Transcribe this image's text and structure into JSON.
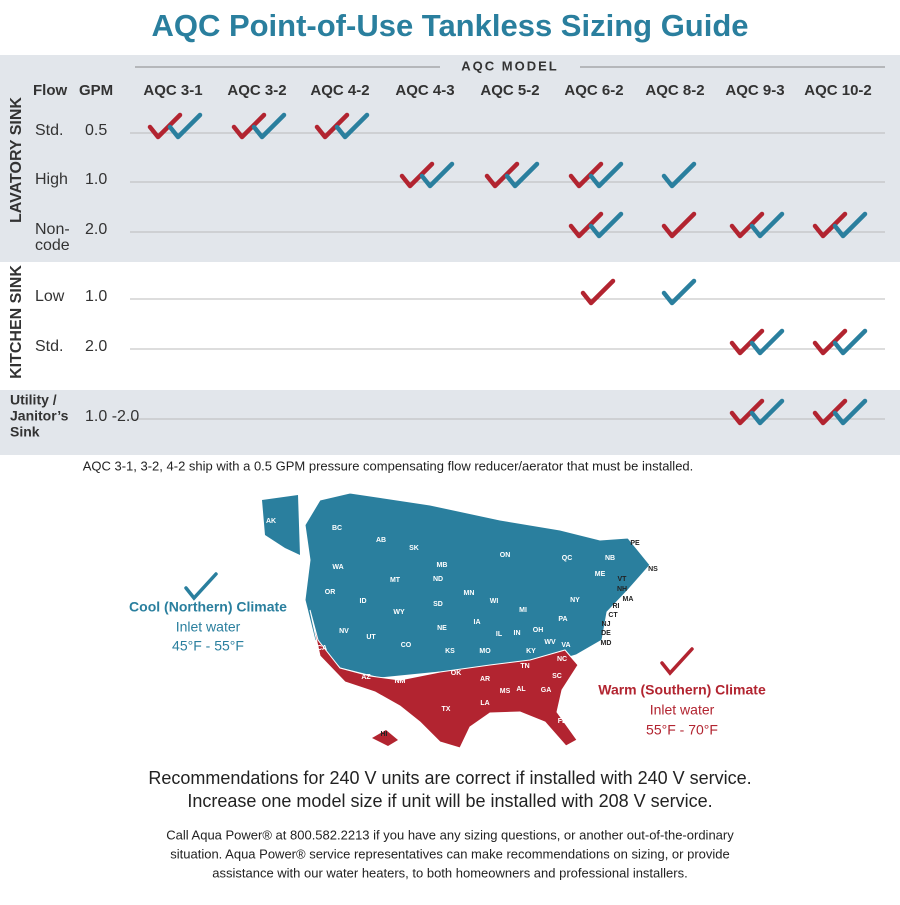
{
  "title": "AQC Point-of-Use Tankless Sizing Guide",
  "table": {
    "model_header": "AQC MODEL",
    "flow_header": "Flow",
    "gpm_header": "GPM",
    "models": [
      "AQC 3-1",
      "AQC 3-2",
      "AQC 4-2",
      "AQC 4-3",
      "AQC 5-2",
      "AQC 6-2",
      "AQC 8-2",
      "AQC 9-3",
      "AQC 10-2"
    ],
    "groups": [
      {
        "label": "LAVATORY SINK",
        "rows": [
          {
            "label": [
              "Std."
            ],
            "gpm": "0.5",
            "checks": [
              "both",
              "both",
              "both",
              null,
              null,
              null,
              null,
              null,
              null
            ]
          },
          {
            "label": [
              "High"
            ],
            "gpm": "1.0",
            "checks": [
              null,
              null,
              null,
              "both",
              "both",
              "both",
              "cool",
              null,
              null
            ]
          },
          {
            "label": [
              "Non-",
              "code"
            ],
            "gpm": "2.0",
            "checks": [
              null,
              null,
              null,
              null,
              null,
              "both",
              "warm",
              "both",
              "both"
            ]
          }
        ]
      },
      {
        "label": "KITCHEN SINK",
        "rows": [
          {
            "label": [
              "Low"
            ],
            "gpm": "1.0",
            "checks": [
              null,
              null,
              null,
              null,
              null,
              "warm",
              "cool",
              null,
              null
            ]
          },
          {
            "label": [
              "Std."
            ],
            "gpm": "2.0",
            "checks": [
              null,
              null,
              null,
              null,
              null,
              null,
              null,
              "both",
              "both"
            ]
          }
        ]
      },
      {
        "rows": [
          {
            "label": [
              "Utility /",
              "Janitor’s",
              "Sink"
            ],
            "gpm": "1.0 -2.0",
            "checks": [
              null,
              null,
              null,
              null,
              null,
              null,
              null,
              "both",
              "both"
            ]
          }
        ]
      }
    ],
    "footnote": "AQC 3-1, 3-2, 4-2 ship with a 0.5 GPM pressure compensating flow reducer/aerator that must be installed."
  },
  "map": {
    "labels": [
      "AK",
      "BC",
      "AB",
      "SK",
      "MB",
      "ON",
      "QC",
      "NB",
      "PE",
      "NS",
      "ME",
      "VT",
      "NH",
      "MA",
      "RI",
      "CT",
      "NJ",
      "DE",
      "MD",
      "WA",
      "OR",
      "CA",
      "NV",
      "ID",
      "MT",
      "WY",
      "UT",
      "CO",
      "AZ",
      "NM",
      "ND",
      "SD",
      "NE",
      "KS",
      "OK",
      "TX",
      "MN",
      "IA",
      "MO",
      "AR",
      "LA",
      "WI",
      "IL",
      "MI",
      "IN",
      "OH",
      "KY",
      "TN",
      "MS",
      "AL",
      "GA",
      "FL",
      "SC",
      "NC",
      "VA",
      "WV",
      "PA",
      "NY",
      "HI"
    ],
    "cool": {
      "title": "Cool (Northern) Climate",
      "line1": "Inlet water",
      "line2": "45°F - 55°F"
    },
    "warm": {
      "title": "Warm (Southern) Climate",
      "line1": "Inlet water",
      "line2": "55°F - 70°F"
    }
  },
  "notes": {
    "recommendation": [
      "Recommendations for 240 V units are correct if installed with 240 V service.",
      "Increase one model size if unit will be installed with 208 V service."
    ],
    "contact": [
      "Call Aqua Power® at 800.582.2213 if you have any sizing questions, or another out-of-the-ordinary",
      "situation. Aqua Power® service representatives can make recommendations on sizing, or provide",
      "assistance with our water heaters, to both homeowners and professional installers."
    ]
  }
}
